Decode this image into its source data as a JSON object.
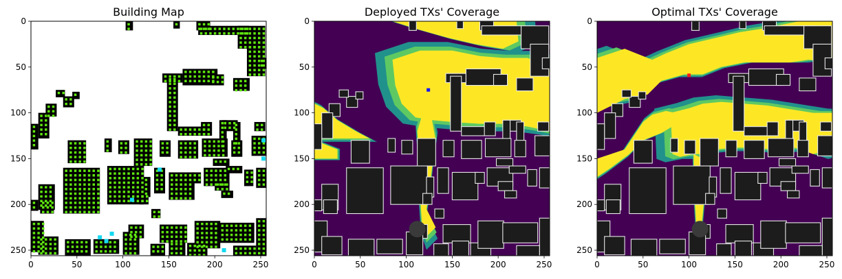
{
  "figure": {
    "panel_titles": [
      "Building Map",
      "Deployed TXs' Coverage",
      "Optimal TXs' Coverage"
    ]
  },
  "chart_data": [
    {
      "type": "heatmap",
      "title": "Building Map",
      "xlabel": "",
      "ylabel": "",
      "xlim": [
        0,
        256
      ],
      "ylim": [
        256,
        0
      ],
      "xticks": [
        0,
        50,
        100,
        150,
        200,
        250
      ],
      "yticks": [
        0,
        50,
        100,
        150,
        200,
        250
      ],
      "colors": {
        "background": "#ffffff",
        "building": "#000000",
        "candidate_tx": "#5fe60f",
        "deployed_tx": "#16d9f0"
      },
      "deployed_tx_markers": [
        [
          75,
          236
        ],
        [
          82,
          240
        ],
        [
          88,
          232
        ],
        [
          110,
          195
        ],
        [
          140,
          162
        ],
        [
          210,
          250
        ],
        [
          253,
          130
        ],
        [
          253,
          150
        ]
      ]
    },
    {
      "type": "heatmap",
      "title": "Deployed TXs' Coverage",
      "xlabel": "",
      "ylabel": "",
      "xlim": [
        0,
        256
      ],
      "ylim": [
        256,
        0
      ],
      "xticks": [
        0,
        50,
        100,
        150,
        200,
        250
      ],
      "yticks": [
        0,
        50,
        100,
        150,
        200,
        250
      ],
      "colors": {
        "strong": "#fde725",
        "good": "#5ec962",
        "weak": "#21918c",
        "none": "#440154",
        "building": "#1c1c1c",
        "building_edge": "#e8e8e8"
      },
      "tx_marker": {
        "x": 124,
        "y": 75,
        "color": "#1515ff"
      }
    },
    {
      "type": "heatmap",
      "title": "Optimal TXs' Coverage",
      "xlabel": "",
      "ylabel": "",
      "xlim": [
        0,
        256
      ],
      "ylim": [
        256,
        0
      ],
      "xticks": [
        0,
        50,
        100,
        150,
        200,
        250
      ],
      "yticks": [
        0,
        50,
        100,
        150,
        200,
        250
      ],
      "colors": {
        "strong": "#fde725",
        "good": "#5ec962",
        "weak": "#21918c",
        "none": "#440154",
        "building": "#1c1c1c",
        "building_edge": "#e8e8e8"
      },
      "tx_marker": {
        "x": 100,
        "y": 59,
        "color": "#ff1a1a"
      }
    }
  ]
}
